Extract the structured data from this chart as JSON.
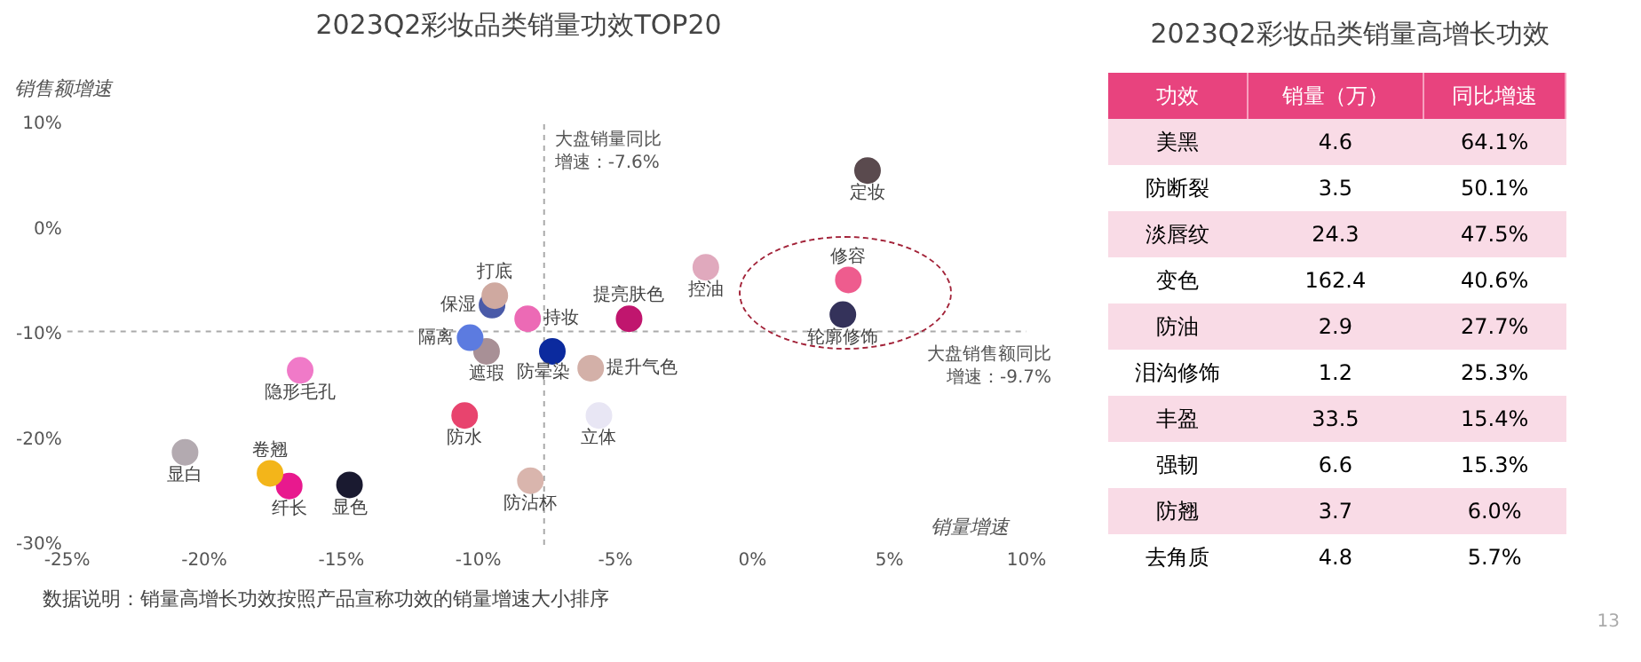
{
  "chart_data": [
    {
      "type": "scatter",
      "title": "2023Q2彩妆品类销量功效TOP20",
      "xlabel": "销量增速",
      "ylabel": "销售额增速",
      "xlim": [
        -25,
        10
      ],
      "ylim": [
        -30,
        10
      ],
      "xticks": [
        {
          "value": -25,
          "label": "-25%"
        },
        {
          "value": -20,
          "label": "-20%"
        },
        {
          "value": -15,
          "label": "-15%"
        },
        {
          "value": -10,
          "label": "-10%"
        },
        {
          "value": -5,
          "label": "-5%"
        },
        {
          "value": 0,
          "label": "0%"
        },
        {
          "value": 5,
          "label": "5%"
        },
        {
          "value": 10,
          "label": "10%"
        }
      ],
      "yticks": [
        {
          "value": -30,
          "label": "-30%"
        },
        {
          "value": -20,
          "label": "-20%"
        },
        {
          "value": -10,
          "label": "-10%"
        },
        {
          "value": 0,
          "label": "0%"
        },
        {
          "value": 10,
          "label": "10%"
        }
      ],
      "grid": false,
      "legend": false,
      "marker": "circle",
      "ref_lines": [
        {
          "axis": "x",
          "value": -7.6,
          "label": "大盘销量同比增速：-7.6%",
          "color": "#aaaaaa",
          "line_style": "dashed"
        },
        {
          "axis": "y",
          "value": -9.7,
          "label": "大盘销售额同比增速：-9.7%",
          "color": "#aaaaaa",
          "line_style": "dashed"
        }
      ],
      "series": [
        {
          "name": "定妆",
          "color": "#5a4a4e",
          "x": [
            4.2
          ],
          "values": [
            5.6
          ]
        },
        {
          "name": "修容",
          "color": "#ee5c8e",
          "x": [
            3.5
          ],
          "values": [
            -4.8
          ]
        },
        {
          "name": "轮廓修饰",
          "color": "#34325a",
          "x": [
            3.3
          ],
          "values": [
            -8.1
          ]
        },
        {
          "name": "控油",
          "color": "#e0a9bd",
          "x": [
            -1.7
          ],
          "values": [
            -3.6
          ]
        },
        {
          "name": "提亮肤色",
          "color": "#c0166e",
          "x": [
            -4.5
          ],
          "values": [
            -8.5
          ]
        },
        {
          "name": "提升气色",
          "color": "#d3b0a8",
          "x": [
            -5.9
          ],
          "values": [
            -13.2
          ]
        },
        {
          "name": "立体",
          "color": "#e8e6f4",
          "x": [
            -5.6
          ],
          "values": [
            -17.7
          ]
        },
        {
          "name": "防晕染",
          "color": "#0b2a9e",
          "x": [
            -7.3
          ],
          "values": [
            -11.6
          ]
        },
        {
          "name": "持妆",
          "color": "#ec6ab5",
          "x": [
            -8.2
          ],
          "values": [
            -8.5
          ]
        },
        {
          "name": "打底",
          "color": "#cfa9a0",
          "x": [
            -9.4
          ],
          "values": [
            -6.3
          ]
        },
        {
          "name": "保湿",
          "color": "#4a5aa8",
          "x": [
            -9.5
          ],
          "values": [
            -7.2
          ]
        },
        {
          "name": "隔离",
          "color": "#5c7be0",
          "x": [
            -10.3
          ],
          "values": [
            -10.3
          ]
        },
        {
          "name": "遮瑕",
          "color": "#a89096",
          "x": [
            -9.7
          ],
          "values": [
            -11.6
          ]
        },
        {
          "name": "防水",
          "color": "#e8446e",
          "x": [
            -10.5
          ],
          "values": [
            -17.7
          ]
        },
        {
          "name": "防沾杯",
          "color": "#d9b5ad",
          "x": [
            -8.1
          ],
          "values": [
            -23.9
          ]
        },
        {
          "name": "隐形毛孔",
          "color": "#f07ac8",
          "x": [
            -16.5
          ],
          "values": [
            -13.4
          ]
        },
        {
          "name": "显白",
          "color": "#b3aab0",
          "x": [
            -20.7
          ],
          "values": [
            -21.2
          ]
        },
        {
          "name": "卷翘",
          "color": "#f3b51a",
          "x": [
            -17.6
          ],
          "values": [
            -23.2
          ]
        },
        {
          "name": "纤长",
          "color": "#e8198e",
          "x": [
            -16.9
          ],
          "values": [
            -24.4
          ]
        },
        {
          "name": "显色",
          "color": "#1a1a30",
          "x": [
            -14.7
          ],
          "values": [
            -24.3
          ]
        }
      ],
      "annotations": [
        "数据说明：销量高增长功效按照产品宣称功效的销量增速大小排序"
      ]
    },
    {
      "type": "other",
      "title": "2023Q2彩妆品类销量高增长功效",
      "xlabel": "功效",
      "data_labels": true,
      "categories": [
        "美黑",
        "防断裂",
        "淡唇纹",
        "变色",
        "防油",
        "泪沟修饰",
        "丰盈",
        "强韧",
        "防翘",
        "去角质"
      ],
      "series": [
        {
          "name": "销量（万）",
          "colors": [
            "#f9dbe6",
            "#ffffff",
            "#f9dbe6",
            "#ffffff",
            "#f9dbe6",
            "#ffffff",
            "#f9dbe6",
            "#ffffff",
            "#f9dbe6",
            "#ffffff"
          ],
          "values": [
            4.6,
            3.5,
            24.3,
            162.4,
            2.9,
            1.2,
            33.5,
            6.6,
            3.7,
            4.8
          ]
        },
        {
          "name": "同比增速",
          "colors": [
            "#f9dbe6",
            "#ffffff",
            "#f9dbe6",
            "#ffffff",
            "#f9dbe6",
            "#ffffff",
            "#f9dbe6",
            "#ffffff",
            "#f9dbe6",
            "#ffffff"
          ],
          "values": [
            64.1,
            50.1,
            47.5,
            40.6,
            27.7,
            25.3,
            15.4,
            15.3,
            6.0,
            5.7
          ],
          "value_labels": [
            "64.1%",
            "50.1%",
            "47.5%",
            "40.6%",
            "27.7%",
            "25.3%",
            "15.4%",
            "15.3%",
            "6.0%",
            "5.7%"
          ]
        }
      ],
      "annotations": [
        "13"
      ]
    }
  ]
}
